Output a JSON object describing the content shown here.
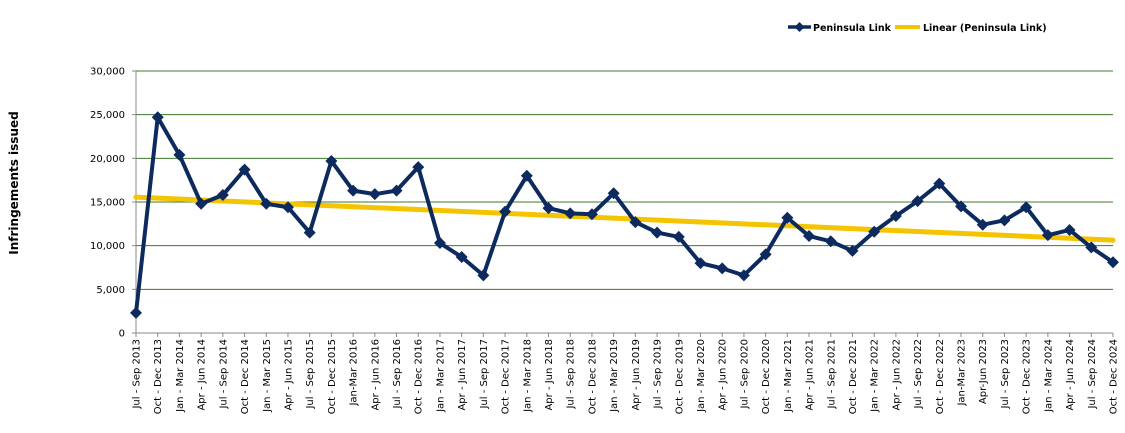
{
  "chart_data": {
    "type": "line",
    "title": "",
    "xlabel": "",
    "ylabel": "Infringements issued",
    "ylim": [
      0,
      30000
    ],
    "yticks": [
      "0",
      "5,000",
      "10,000",
      "15,000",
      "20,000",
      "25,000",
      "30,000"
    ],
    "grid": true,
    "legend_position": "top-right",
    "categories": [
      "Jul - Sep 2013",
      "Oct - Dec 2013",
      "Jan - Mar 2014",
      "Apr - Jun 2014",
      "Jul - Sep 2014",
      "Oct - Dec 2014",
      "Jan - Mar 2015",
      "Apr - Jun 2015",
      "Jul - Sep 2015",
      "Oct - Dec 2015",
      "Jan-Mar 2016",
      "Apr - Jun 2016",
      "Jul - Sep 2016",
      "Oct - Dec 2016",
      "Jan - Mar 2017",
      "Apr - Jun 2017",
      "Jul - Sep 2017",
      "Oct - Dec 2017",
      "Jan - Mar 2018",
      "Apr - Jun 2018",
      "Jul - Sep 2018",
      "Oct - Dec 2018",
      "Jan - Mar 2019",
      "Apr - Jun 2019",
      "Jul - Sep 2019",
      "Oct - Dec 2019",
      "Jan - Mar 2020",
      "Apr - Jun 2020",
      "Jul - Sep 2020",
      "Oct - Dec 2020",
      "Jan - Mar 2021",
      "Apr - Jun 2021",
      "Jul - Sep 2021",
      "Oct - Dec 2021",
      "Jan - Mar 2022",
      "Apr - Jun 2022",
      "Jul - Sep 2022",
      "Oct - Dec 2022",
      "Jan-Mar 2023",
      "Apr-Jun 2023",
      "Jul - Sep 2023",
      "Oct - Dec 2023",
      "Jan - Mar 2024",
      "Apr - Jun 2024",
      "Jul - Sep 2024",
      "Oct - Dec 2024"
    ],
    "series": [
      {
        "name": "Peninsula Link",
        "color": "#0d2a5e",
        "marker": "diamond",
        "values": [
          2300,
          24700,
          20400,
          14800,
          15800,
          18700,
          14800,
          14400,
          11500,
          19700,
          16300,
          15900,
          16300,
          19000,
          10300,
          8700,
          6600,
          13900,
          18000,
          14300,
          13700,
          13600,
          16000,
          12700,
          11500,
          11000,
          8000,
          7400,
          6600,
          9000,
          13200,
          11100,
          10500,
          9400,
          11600,
          13400,
          15100,
          17100,
          14500,
          12400,
          12900,
          14400,
          11200,
          11800,
          9800,
          8100
        ]
      }
    ],
    "trendline": {
      "name": "Linear (Peninsula Link)",
      "type": "linear",
      "of": "Peninsula Link",
      "color": "#f5c400"
    },
    "gridline_color": "#3c7a2c"
  }
}
